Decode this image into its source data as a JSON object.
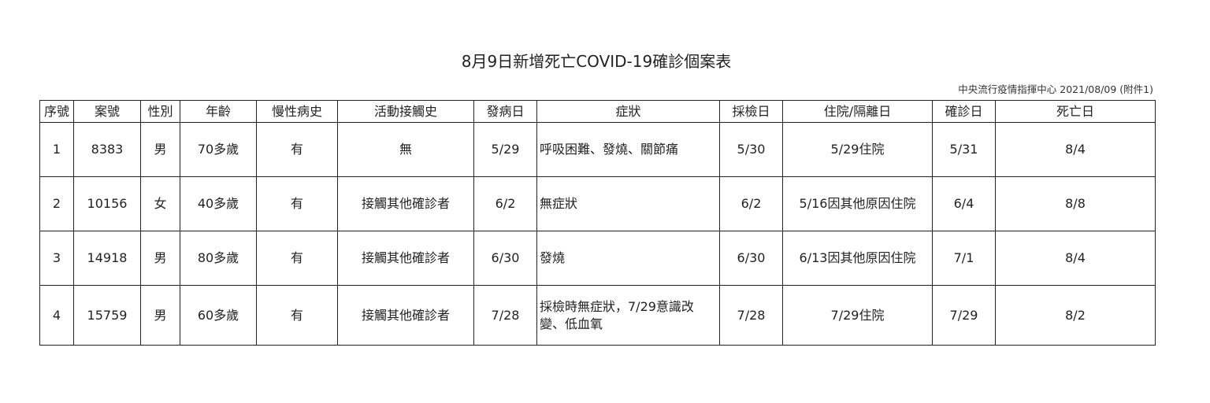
{
  "title": "8月9日新增死亡COVID-19確診個案表",
  "subtitle": "中央流行疫情指揮中心 2021/08/09 (附件1)",
  "headers": [
    "序號",
    "案號",
    "性別",
    "年齡",
    "慢性病史",
    "活動接觸史",
    "發病日",
    "症狀",
    "採檢日",
    "住院/隔離日",
    "確診日",
    "死亡日"
  ],
  "rows": [
    [
      "1",
      "8383",
      "男",
      "70多歲",
      "有",
      "無",
      "5/29",
      "呼吸困難、發燒、關節痛",
      "5/30",
      "5/29住院",
      "5/31",
      "8/4"
    ],
    [
      "2",
      "10156",
      "女",
      "40多歲",
      "有",
      "接觸其他確診者",
      "6/2",
      "無症狀",
      "6/2",
      "5/16因其他原因住院",
      "6/4",
      "8/8"
    ],
    [
      "3",
      "14918",
      "男",
      "80多歲",
      "有",
      "接觸其他確診者",
      "6/30",
      "發燒",
      "6/30",
      "6/13因其他原因住院",
      "7/1",
      "8/4"
    ],
    [
      "4",
      "15759",
      "男",
      "60多歲",
      "有",
      "接觸其他確診者",
      "7/28",
      "採檢時無症狀，7/29意識改變、低血氧",
      "7/28",
      "7/29住院",
      "7/29",
      "8/2"
    ]
  ]
}
